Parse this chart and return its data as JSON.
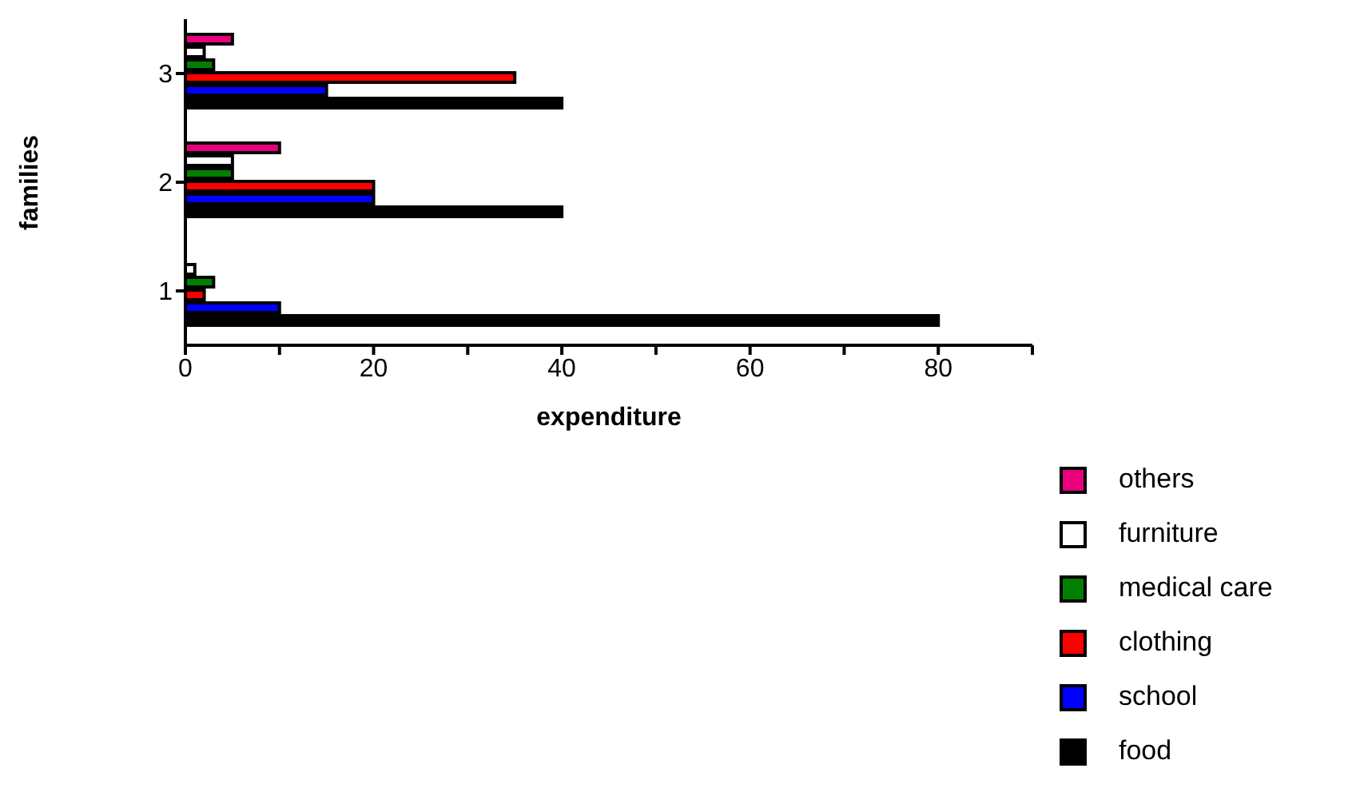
{
  "chart_data": {
    "type": "bar",
    "orientation": "horizontal",
    "xlabel": "expenditure",
    "ylabel": "families",
    "categories": [
      "3",
      "2",
      "1"
    ],
    "series": [
      {
        "name": "others",
        "color": "#e8007d",
        "values": [
          5,
          10,
          0
        ]
      },
      {
        "name": "furniture",
        "color": "#ffffff",
        "values": [
          2,
          5,
          1
        ]
      },
      {
        "name": "medical care",
        "color": "#008000",
        "values": [
          3,
          5,
          3
        ]
      },
      {
        "name": "clothing",
        "color": "#ff0000",
        "values": [
          35,
          20,
          2
        ]
      },
      {
        "name": "school",
        "color": "#0000ff",
        "values": [
          15,
          20,
          10
        ]
      },
      {
        "name": "food",
        "color": "#000000",
        "values": [
          40,
          40,
          80
        ]
      }
    ],
    "xlim": [
      0,
      90
    ],
    "xticks": [
      0,
      {
        "value": 10,
        "label": null
      },
      20,
      {
        "value": 30,
        "label": null
      },
      40,
      {
        "value": 50,
        "label": null
      },
      60,
      {
        "value": 70,
        "label": null
      },
      80,
      {
        "value": 90,
        "label": null
      }
    ],
    "legend": "bottom right",
    "grid": false
  }
}
